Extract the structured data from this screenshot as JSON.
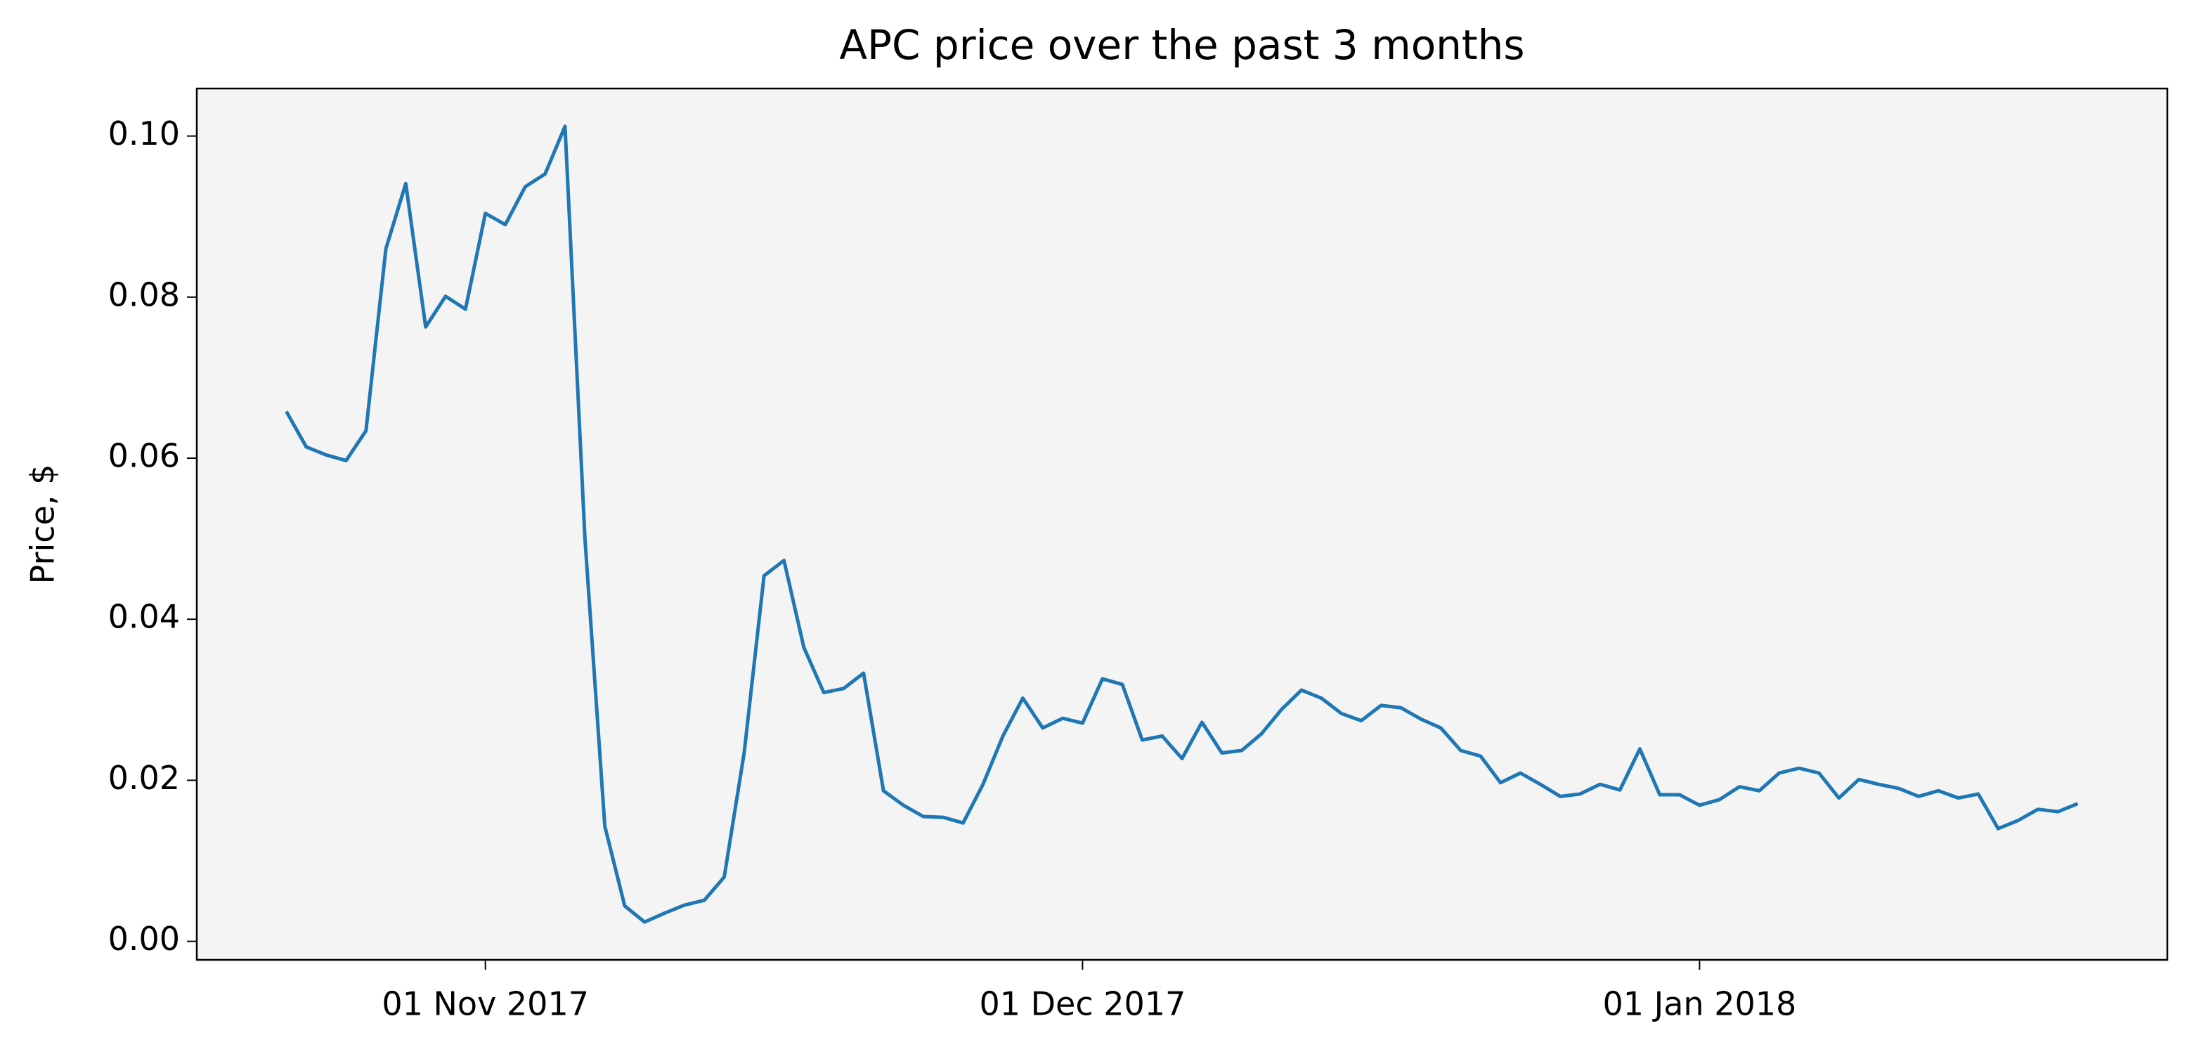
{
  "chart_data": {
    "type": "line",
    "title": "APC price over the past 3 months",
    "y_label": "Price, $",
    "x": [
      "2017-10-22",
      "2017-10-23",
      "2017-10-24",
      "2017-10-25",
      "2017-10-26",
      "2017-10-27",
      "2017-10-28",
      "2017-10-29",
      "2017-10-30",
      "2017-10-31",
      "2017-11-01",
      "2017-11-02",
      "2017-11-03",
      "2017-11-04",
      "2017-11-05",
      "2017-11-06",
      "2017-11-07",
      "2017-11-08",
      "2017-11-09",
      "2017-11-10",
      "2017-11-11",
      "2017-11-12",
      "2017-11-13",
      "2017-11-14",
      "2017-11-15",
      "2017-11-16",
      "2017-11-17",
      "2017-11-18",
      "2017-11-19",
      "2017-11-20",
      "2017-11-21",
      "2017-11-22",
      "2017-11-23",
      "2017-11-24",
      "2017-11-25",
      "2017-11-26",
      "2017-11-27",
      "2017-11-28",
      "2017-11-29",
      "2017-11-30",
      "2017-12-01",
      "2017-12-02",
      "2017-12-03",
      "2017-12-04",
      "2017-12-05",
      "2017-12-06",
      "2017-12-07",
      "2017-12-08",
      "2017-12-09",
      "2017-12-10",
      "2017-12-11",
      "2017-12-12",
      "2017-12-13",
      "2017-12-14",
      "2017-12-15",
      "2017-12-16",
      "2017-12-17",
      "2017-12-18",
      "2017-12-19",
      "2017-12-20",
      "2017-12-21",
      "2017-12-22",
      "2017-12-23",
      "2017-12-24",
      "2017-12-25",
      "2017-12-26",
      "2017-12-27",
      "2017-12-28",
      "2017-12-29",
      "2017-12-30",
      "2017-12-31",
      "2018-01-01",
      "2018-01-02",
      "2018-01-03",
      "2018-01-04",
      "2018-01-05",
      "2018-01-06",
      "2018-01-07",
      "2018-01-08",
      "2018-01-09",
      "2018-01-10",
      "2018-01-11",
      "2018-01-12",
      "2018-01-13",
      "2018-01-14",
      "2018-01-15",
      "2018-01-16",
      "2018-01-17",
      "2018-01-18",
      "2018-01-19",
      "2018-01-20"
    ],
    "values": [
      0.0658,
      0.0614,
      0.0604,
      0.0597,
      0.0634,
      0.086,
      0.0941,
      0.0763,
      0.0801,
      0.0785,
      0.0904,
      0.089,
      0.0937,
      0.0953,
      0.1012,
      0.0501,
      0.0143,
      0.0044,
      0.0024,
      0.0035,
      0.0045,
      0.0051,
      0.008,
      0.0234,
      0.0454,
      0.0473,
      0.0365,
      0.0309,
      0.0314,
      0.0333,
      0.0187,
      0.0169,
      0.0155,
      0.0154,
      0.0147,
      0.0195,
      0.0255,
      0.0302,
      0.0265,
      0.0277,
      0.0271,
      0.0326,
      0.0319,
      0.025,
      0.0255,
      0.0227,
      0.0272,
      0.0234,
      0.0237,
      0.0258,
      0.0288,
      0.0312,
      0.0302,
      0.0283,
      0.0274,
      0.0293,
      0.029,
      0.0276,
      0.0265,
      0.0237,
      0.023,
      0.0197,
      0.0209,
      0.0195,
      0.018,
      0.0183,
      0.0195,
      0.0188,
      0.0239,
      0.0182,
      0.0182,
      0.0169,
      0.0176,
      0.0192,
      0.0187,
      0.0209,
      0.0215,
      0.0209,
      0.0178,
      0.0201,
      0.0195,
      0.019,
      0.018,
      0.0187,
      0.0178,
      0.0183,
      0.014,
      0.015,
      0.0164,
      0.0161,
      0.0171
    ],
    "color": "#1f77b4",
    "xlim": [
      "2017-10-17T12:00:00Z",
      "2018-01-24T12:00:00Z"
    ],
    "xticks": [
      {
        "value": "2017-11-01",
        "label": "01 Nov 2017"
      },
      {
        "value": "2017-12-01",
        "label": "01 Dec 2017"
      },
      {
        "value": "2018-01-01",
        "label": "01 Jan 2018"
      }
    ],
    "ylim": [
      -0.0023,
      0.1059
    ],
    "yticks": [
      {
        "value": 0,
        "label": "0.00"
      },
      {
        "value": 0.02,
        "label": "0.02"
      },
      {
        "value": 0.04,
        "label": "0.04"
      },
      {
        "value": 0.06,
        "label": "0.06"
      },
      {
        "value": 0.08,
        "label": "0.08"
      },
      {
        "value": 0.1,
        "label": "0.10"
      }
    ],
    "grid": false
  }
}
